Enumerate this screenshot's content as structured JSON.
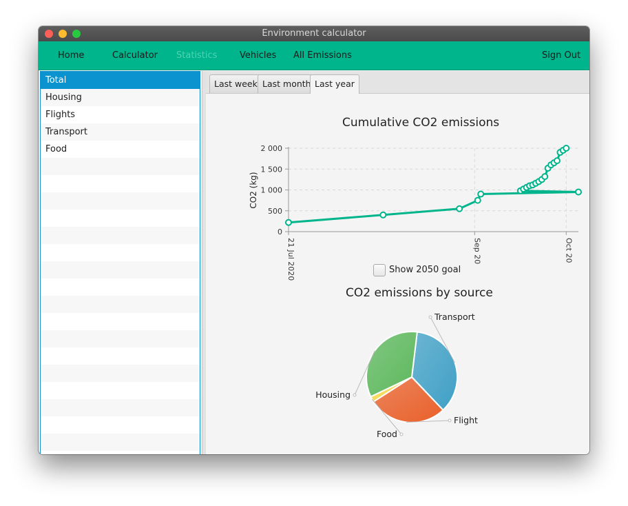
{
  "window": {
    "title": "Environment calculator"
  },
  "nav": {
    "home": "Home",
    "calculator": "Calculator",
    "statistics": "Statistics",
    "vehicles": "Vehicles",
    "all_emissions": "All Emissions",
    "sign_out": "Sign Out"
  },
  "sidebar": {
    "items": [
      "Total",
      "Housing",
      "Flights",
      "Transport",
      "Food"
    ],
    "selected": "Total"
  },
  "tabs": [
    "Last week",
    "Last month",
    "Last year"
  ],
  "active_tab": "Last year",
  "goal_checkbox": {
    "label": "Show 2050 goal",
    "checked": false
  },
  "colors": {
    "accent": "#00b48c",
    "selection": "#0a93cf",
    "line": "#00b48c",
    "transport": "#3fa0c6",
    "flight": "#e9602a",
    "housing": "#5cb85c",
    "food": "#f5d84a"
  },
  "chart_data": [
    {
      "type": "line",
      "title": "Cumulative CO2 emissions",
      "ylabel": "CO2 (kg)",
      "xlabel": "",
      "ylim": [
        0,
        2000
      ],
      "yticks": [
        0,
        500,
        1000,
        1500,
        2000
      ],
      "ytick_labels": [
        "0",
        "500",
        "1 000",
        "1 500",
        "2 000"
      ],
      "xlim": [
        "2020-07-21",
        "2020-10-24"
      ],
      "xticks": [
        "2020-07-21",
        "2020-09-20",
        "2020-10-20"
      ],
      "xtick_labels": [
        "21 Jul 2020",
        "Sep 20",
        "Oct 20"
      ],
      "grid": true,
      "series": [
        {
          "x": [
            "2020-07-21",
            "2020-08-21",
            "2020-09-15",
            "2020-09-21",
            "2020-09-22",
            "2020-10-24",
            "2020-10-05",
            "2020-10-06",
            "2020-10-07",
            "2020-10-08",
            "2020-10-09",
            "2020-10-10",
            "2020-10-11",
            "2020-10-12",
            "2020-10-13",
            "2020-10-14",
            "2020-10-15",
            "2020-10-16",
            "2020-10-17",
            "2020-10-18",
            "2020-10-19",
            "2020-10-20"
          ],
          "y": [
            220,
            400,
            550,
            750,
            900,
            950,
            980,
            1020,
            1060,
            1100,
            1120,
            1160,
            1200,
            1250,
            1320,
            1520,
            1600,
            1650,
            1700,
            1900,
            1950,
            2000
          ]
        }
      ]
    },
    {
      "type": "pie",
      "title": "CO2 emissions by source",
      "labels": [
        "Transport",
        "Flight",
        "Food",
        "Housing"
      ],
      "values": [
        36,
        28,
        2,
        34
      ]
    }
  ]
}
